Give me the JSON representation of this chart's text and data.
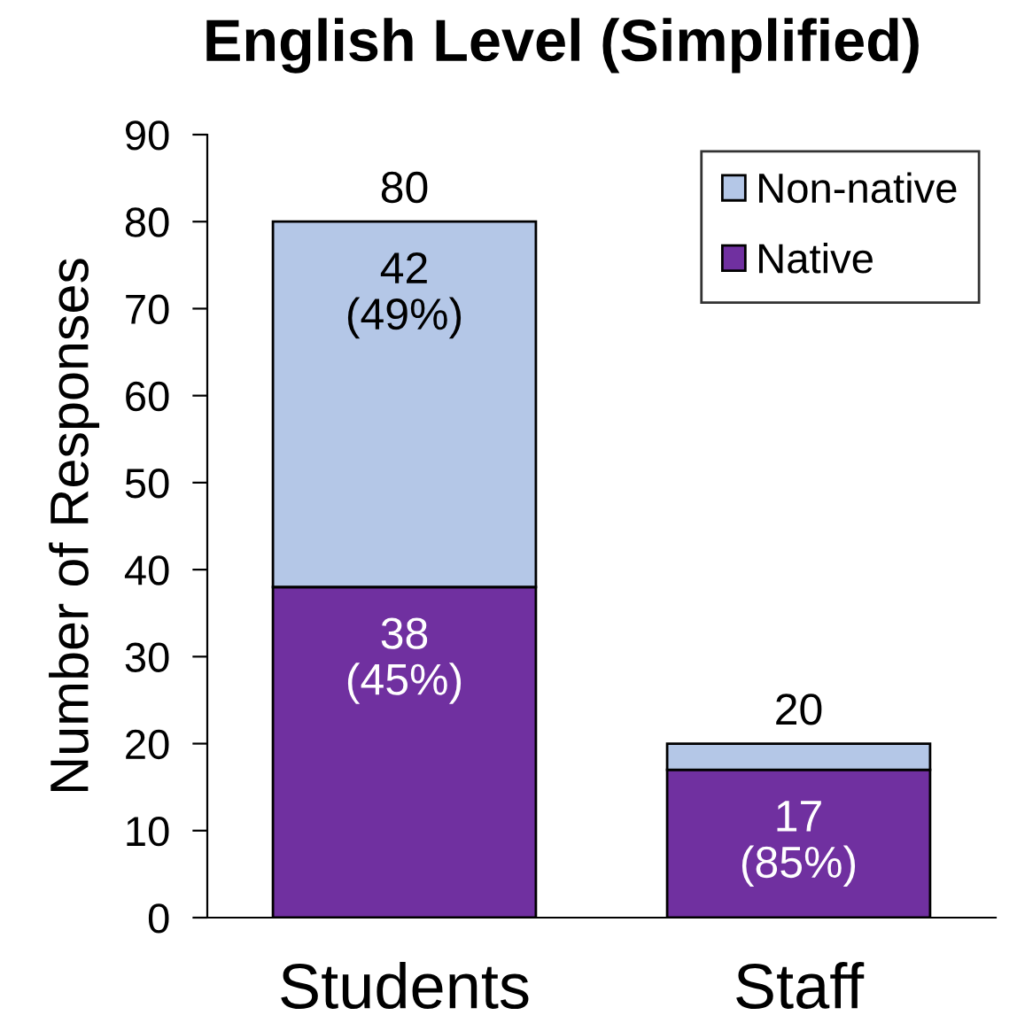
{
  "chart_data": {
    "type": "bar",
    "title": "English Level (Simplified)",
    "ylabel": "Number of Responses",
    "categories": [
      "Students",
      "Staff"
    ],
    "stacked": true,
    "series": [
      {
        "name": "Native",
        "color": "#7030a0",
        "values": [
          38,
          17
        ],
        "value_labels": [
          "38\n(45%)",
          "17\n(85%)"
        ]
      },
      {
        "name": "Non-native",
        "color": "#b4c7e7",
        "values": [
          42,
          3
        ],
        "value_labels": [
          "42\n(49%)",
          null
        ]
      }
    ],
    "totals": [
      "80",
      "20"
    ],
    "ylim": [
      0,
      90
    ],
    "yticks": [
      0,
      10,
      20,
      30,
      40,
      50,
      60,
      70,
      80,
      90
    ],
    "legend": "top right"
  }
}
